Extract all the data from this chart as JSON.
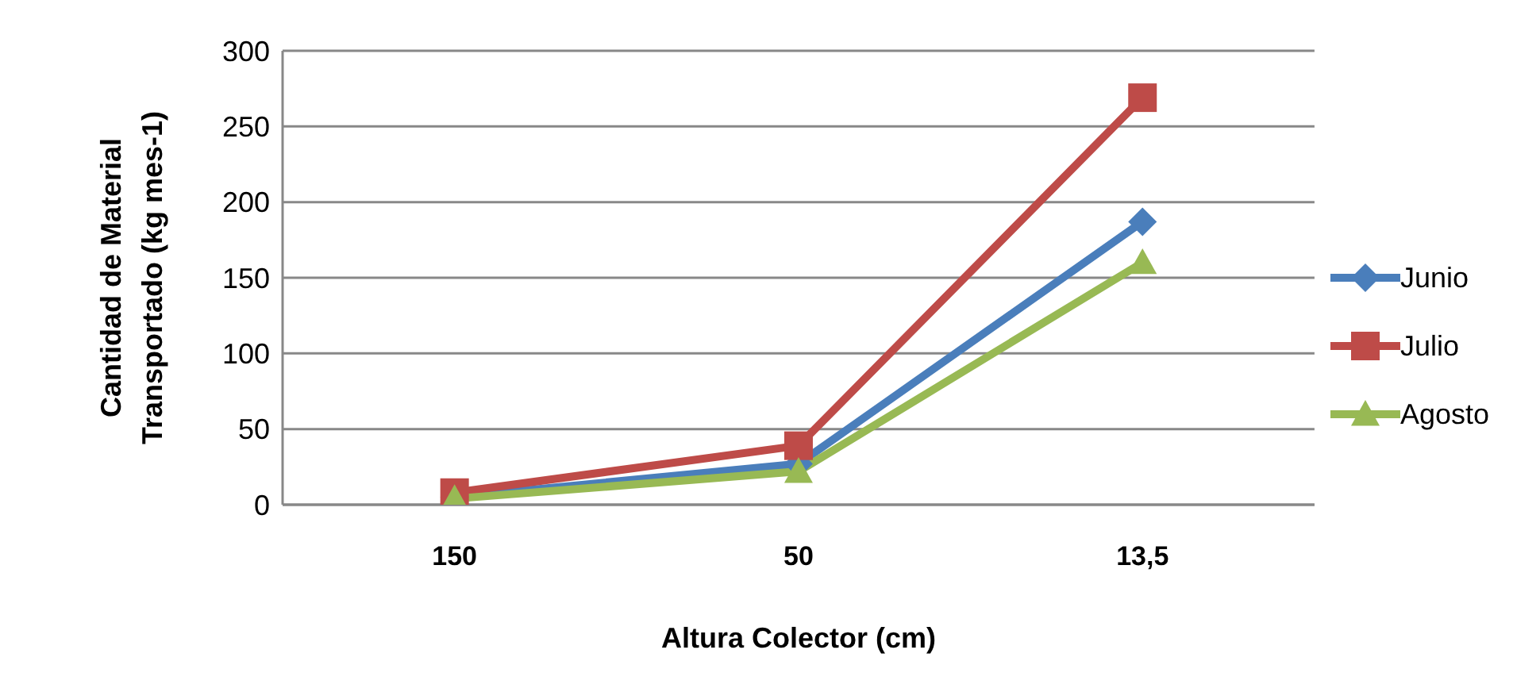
{
  "chart_data": {
    "type": "line",
    "xlabel": "Altura Colector (cm)",
    "ylabel": "Cantidad de Material Transportado (kg mes-1)",
    "categories": [
      "150",
      "50",
      "13,5"
    ],
    "series": [
      {
        "name": "Junio",
        "color": "#4a7ebb",
        "values": [
          5,
          27,
          187
        ],
        "marker": "diamond"
      },
      {
        "name": "Julio",
        "color": "#be4b48",
        "values": [
          8,
          39,
          269
        ],
        "marker": "square"
      },
      {
        "name": "Agosto",
        "color": "#98b954",
        "values": [
          4,
          22,
          160
        ],
        "marker": "triangle"
      }
    ],
    "ylim": [
      0,
      300
    ],
    "yticks": [
      0,
      50,
      100,
      150,
      200,
      250,
      300
    ],
    "grid": "y",
    "legend": "right",
    "line_style": "solid"
  }
}
